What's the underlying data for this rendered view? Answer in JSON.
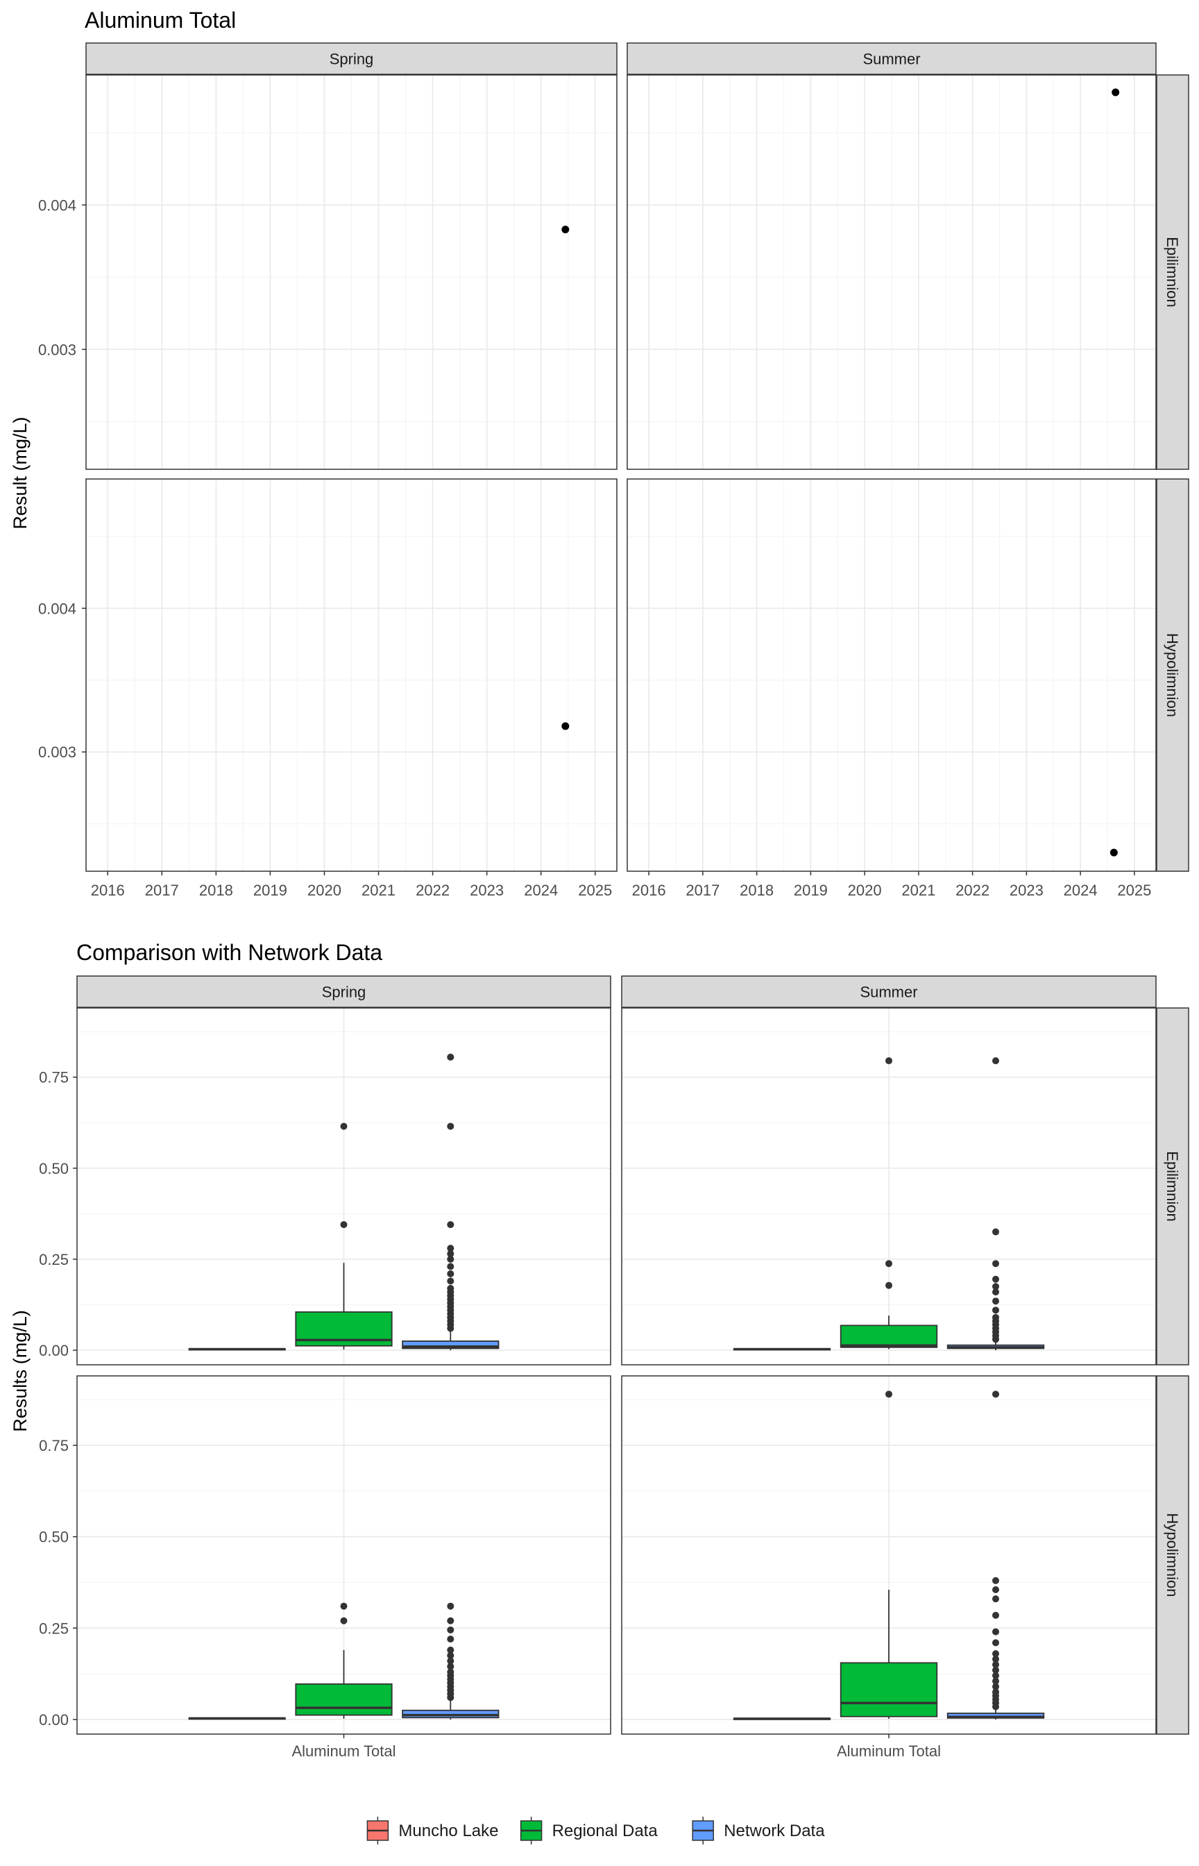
{
  "chart_data": [
    {
      "type": "scatter",
      "title": "Aluminum Total",
      "ylabel": "Result (mg/L)",
      "xlabel": "",
      "col_facets": [
        "Spring",
        "Summer"
      ],
      "row_facets": [
        "Epilimnion",
        "Hypolimnion"
      ],
      "x_ticks": [
        "2016",
        "2017",
        "2018",
        "2019",
        "2020",
        "2021",
        "2022",
        "2023",
        "2024",
        "2025"
      ],
      "xlim": [
        2015.6,
        2025.4
      ],
      "ylim": [
        0.00217,
        0.0049
      ],
      "y_ticks": [
        0.003,
        0.004
      ],
      "y_tick_labels": [
        "0.003",
        "0.004"
      ],
      "grid": true,
      "points": [
        {
          "facet_row": "Epilimnion",
          "facet_col": "Spring",
          "x": 2024.45,
          "y": 0.00383
        },
        {
          "facet_row": "Epilimnion",
          "facet_col": "Summer",
          "x": 2024.65,
          "y": 0.00478
        },
        {
          "facet_row": "Hypolimnion",
          "facet_col": "Spring",
          "x": 2024.45,
          "y": 0.00318
        },
        {
          "facet_row": "Hypolimnion",
          "facet_col": "Summer",
          "x": 2024.62,
          "y": 0.0023
        }
      ]
    },
    {
      "type": "box",
      "title": "Comparison with Network Data",
      "ylabel": "Results (mg/L)",
      "xlabel": "",
      "categories": [
        "Aluminum Total"
      ],
      "col_facets": [
        "Spring",
        "Summer"
      ],
      "row_facets": [
        "Epilimnion",
        "Hypolimnion"
      ],
      "ylim": [
        -0.04,
        0.94
      ],
      "y_ticks": [
        0,
        0.25,
        0.5,
        0.75
      ],
      "y_tick_labels": [
        "0.00",
        "0.25",
        "0.50",
        "0.75"
      ],
      "grid": true,
      "legend": {
        "position": "bottom",
        "items": [
          {
            "label": "Muncho Lake",
            "color": "#f8766d"
          },
          {
            "label": "Regional Data",
            "color": "#00ba38"
          },
          {
            "label": "Network Data",
            "color": "#619cff"
          }
        ]
      },
      "series": [
        {
          "name": "Muncho Lake",
          "color": "#f8766d",
          "panels": [
            {
              "facet_row": "Epilimnion",
              "facet_col": "Spring",
              "min": 0.002,
              "q1": 0.002,
              "median": 0.003,
              "q3": 0.004,
              "max": 0.004,
              "outliers": []
            },
            {
              "facet_row": "Epilimnion",
              "facet_col": "Summer",
              "min": 0.002,
              "q1": 0.002,
              "median": 0.003,
              "q3": 0.004,
              "max": 0.004,
              "outliers": []
            },
            {
              "facet_row": "Hypolimnion",
              "facet_col": "Spring",
              "min": 0.002,
              "q1": 0.002,
              "median": 0.003,
              "q3": 0.004,
              "max": 0.004,
              "outliers": []
            },
            {
              "facet_row": "Hypolimnion",
              "facet_col": "Summer",
              "min": 0.002,
              "q1": 0.002,
              "median": 0.002,
              "q3": 0.003,
              "max": 0.003,
              "outliers": []
            }
          ]
        },
        {
          "name": "Regional Data",
          "color": "#00ba38",
          "panels": [
            {
              "facet_row": "Epilimnion",
              "facet_col": "Spring",
              "min": 0.002,
              "q1": 0.012,
              "median": 0.028,
              "q3": 0.105,
              "max": 0.24,
              "outliers": [
                0.345,
                0.615
              ]
            },
            {
              "facet_row": "Epilimnion",
              "facet_col": "Summer",
              "min": 0.003,
              "q1": 0.008,
              "median": 0.013,
              "q3": 0.068,
              "max": 0.095,
              "outliers": [
                0.178,
                0.238,
                0.795
              ]
            },
            {
              "facet_row": "Hypolimnion",
              "facet_col": "Spring",
              "min": 0.002,
              "q1": 0.012,
              "median": 0.032,
              "q3": 0.097,
              "max": 0.19,
              "outliers": [
                0.27,
                0.31
              ]
            },
            {
              "facet_row": "Hypolimnion",
              "facet_col": "Summer",
              "min": 0.002,
              "q1": 0.008,
              "median": 0.045,
              "q3": 0.155,
              "max": 0.355,
              "outliers": [
                0.89
              ]
            }
          ]
        },
        {
          "name": "Network Data",
          "color": "#619cff",
          "panels": [
            {
              "facet_row": "Epilimnion",
              "facet_col": "Spring",
              "min": 0.0,
              "q1": 0.005,
              "median": 0.01,
              "q3": 0.025,
              "max": 0.055,
              "outliers": [
                0.06,
                0.07,
                0.08,
                0.09,
                0.1,
                0.11,
                0.12,
                0.13,
                0.14,
                0.15,
                0.16,
                0.17,
                0.19,
                0.21,
                0.23,
                0.25,
                0.265,
                0.28,
                0.345,
                0.615,
                0.805
              ]
            },
            {
              "facet_row": "Epilimnion",
              "facet_col": "Summer",
              "min": 0.0,
              "q1": 0.005,
              "median": 0.008,
              "q3": 0.014,
              "max": 0.027,
              "outliers": [
                0.03,
                0.04,
                0.05,
                0.06,
                0.07,
                0.08,
                0.09,
                0.11,
                0.135,
                0.16,
                0.175,
                0.195,
                0.238,
                0.325,
                0.795
              ]
            },
            {
              "facet_row": "Hypolimnion",
              "facet_col": "Spring",
              "min": 0.0,
              "q1": 0.005,
              "median": 0.012,
              "q3": 0.025,
              "max": 0.055,
              "outliers": [
                0.06,
                0.07,
                0.08,
                0.09,
                0.1,
                0.11,
                0.12,
                0.13,
                0.145,
                0.16,
                0.175,
                0.19,
                0.22,
                0.245,
                0.27,
                0.31
              ]
            },
            {
              "facet_row": "Hypolimnion",
              "facet_col": "Summer",
              "min": 0.0,
              "q1": 0.004,
              "median": 0.007,
              "q3": 0.017,
              "max": 0.03,
              "outliers": [
                0.035,
                0.045,
                0.055,
                0.065,
                0.075,
                0.09,
                0.105,
                0.12,
                0.135,
                0.15,
                0.165,
                0.18,
                0.21,
                0.24,
                0.285,
                0.33,
                0.355,
                0.38,
                0.89
              ]
            }
          ]
        }
      ]
    }
  ]
}
